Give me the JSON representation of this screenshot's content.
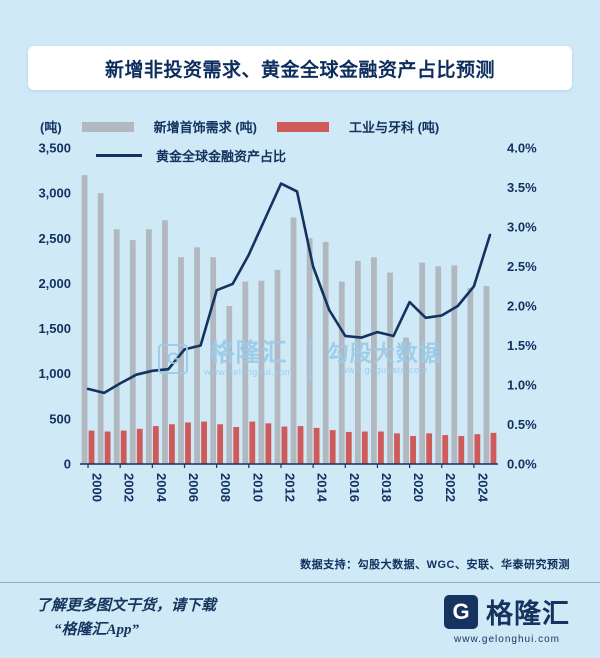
{
  "title": "新增非投资需求、黄金全球金融资产占比预测",
  "colors": {
    "background": "#cfe9f7",
    "navy": "#12315e",
    "bar_gray": "#b2b8bf",
    "bar_red": "#cf5a5a",
    "line_navy": "#14325f"
  },
  "legend": {
    "unit_left": "(吨)",
    "jewelry_label": "新增首饰需求 (吨)",
    "industrial_label": "工业与牙科 (吨)",
    "line_label": "黄金全球金融资产占比"
  },
  "chart_data": {
    "type": "bar+line",
    "x": [
      2000,
      2001,
      2002,
      2003,
      2004,
      2005,
      2006,
      2007,
      2008,
      2009,
      2010,
      2011,
      2012,
      2013,
      2014,
      2015,
      2016,
      2017,
      2018,
      2019,
      2020,
      2021,
      2022,
      2023,
      2024,
      2025
    ],
    "x_tick_labels": [
      "2000",
      "2002",
      "2004",
      "2006",
      "2008",
      "2010",
      "2012",
      "2014",
      "2016",
      "2018",
      "2020",
      "2022",
      "2024"
    ],
    "series": [
      {
        "name": "新增首饰需求 (吨)",
        "type": "bar",
        "axis": "left",
        "color": "#b2b8bf",
        "values": [
          3200,
          3000,
          2600,
          2480,
          2600,
          2700,
          2290,
          2400,
          2290,
          1750,
          2020,
          2030,
          2150,
          2730,
          2500,
          2460,
          2020,
          2250,
          2290,
          2120,
          1400,
          2230,
          2190,
          2200,
          1950,
          1970
        ]
      },
      {
        "name": "工业与牙科 (吨)",
        "type": "bar",
        "axis": "left",
        "color": "#cf5a5a",
        "values": [
          370,
          360,
          370,
          390,
          420,
          440,
          460,
          470,
          440,
          410,
          470,
          450,
          415,
          420,
          400,
          375,
          355,
          360,
          360,
          340,
          310,
          340,
          320,
          310,
          330,
          345
        ]
      },
      {
        "name": "黄金全球金融资产占比",
        "type": "line",
        "axis": "right",
        "color": "#14325f",
        "values": [
          0.95,
          0.9,
          1.02,
          1.13,
          1.18,
          1.2,
          1.45,
          1.5,
          2.2,
          2.28,
          2.65,
          3.1,
          3.55,
          3.45,
          2.5,
          1.95,
          1.62,
          1.6,
          1.67,
          1.62,
          2.05,
          1.85,
          1.88,
          2.0,
          2.25,
          2.9
        ]
      }
    ],
    "left_axis": {
      "min": 0,
      "max": 3500,
      "step": 500,
      "unit": "(吨)",
      "tick_labels": [
        "0",
        "500",
        "1,000",
        "1,500",
        "2,000",
        "2,500",
        "3,000",
        "3,500"
      ]
    },
    "right_axis": {
      "min": 0,
      "max": 4,
      "step": 0.5,
      "tick_labels": [
        "0.0%",
        "0.5%",
        "1.0%",
        "1.5%",
        "2.0%",
        "2.5%",
        "3.0%",
        "3.5%",
        "4.0%"
      ]
    },
    "grid": false,
    "legend_position": "top"
  },
  "watermark": {
    "logo_letter": "G",
    "brand": "格隆汇",
    "brand_url": "www.gelonghui.com",
    "partner": "勾股大数据",
    "partner_url": "www.gogudata.com"
  },
  "source_note": "数据支持：勾股大数据、WGC、安联、华泰研究预测",
  "footer": {
    "promo_line1": "了解更多图文干货，请下载",
    "promo_line2": "“格隆汇App”",
    "logo_letter": "G",
    "logo_name": "格隆汇",
    "logo_url": "www.gelonghui.com"
  }
}
